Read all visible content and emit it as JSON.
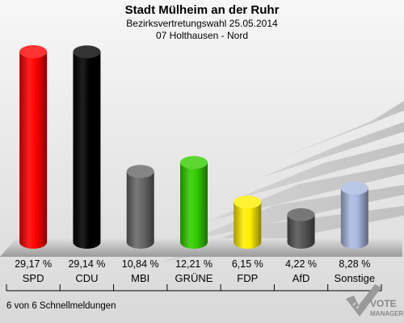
{
  "chart_data": {
    "type": "bar",
    "title": "Stadt Mülheim an der Ruhr",
    "subtitle_1": "Bezirksvertretungswahl 25.05.2014",
    "subtitle_2": "07 Holthausen - Nord",
    "categories": [
      "SPD",
      "CDU",
      "MBI",
      "GRÜNE",
      "FDP",
      "AfD",
      "Sonstige"
    ],
    "values": [
      29.17,
      29.14,
      10.84,
      12.21,
      6.15,
      4.22,
      8.28
    ],
    "value_labels": [
      "29,17 %",
      "29,14 %",
      "10,84 %",
      "12,21 %",
      "6,15 %",
      "4,22 %",
      "8,28 %"
    ],
    "colors": [
      "#ff0000",
      "#000000",
      "#666666",
      "#33cc00",
      "#ffee00",
      "#555555",
      "#a9b8e0"
    ],
    "ylim": [
      0,
      29.17
    ],
    "grid": false,
    "legend": "none"
  },
  "footer": {
    "status": "6 von 6 Schnellmeldungen"
  },
  "logo": {
    "line_1": "VOTE",
    "line_2": "MANAGER"
  }
}
